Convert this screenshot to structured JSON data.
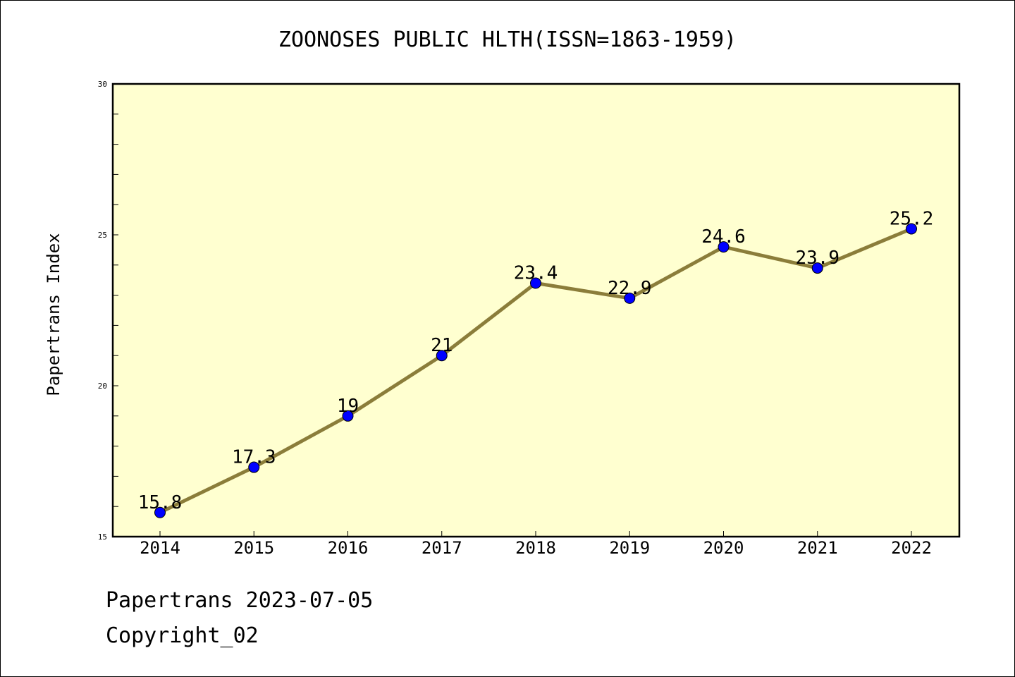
{
  "chart_data": {
    "type": "line",
    "title": "ZOONOSES PUBLIC HLTH(ISSN=1863-1959)",
    "ylabel": "Papertrans Index",
    "xlabel": "",
    "categories": [
      "2014",
      "2015",
      "2016",
      "2017",
      "2018",
      "2019",
      "2020",
      "2021",
      "2022"
    ],
    "series": [
      {
        "values": [
          15.8,
          17.3,
          19,
          21,
          23.4,
          22.9,
          24.6,
          23.9,
          25.2
        ],
        "labels": [
          "15.8",
          "17.3",
          "19",
          "21",
          "23.4",
          "22.9",
          "24.6",
          "23.9",
          "25.2"
        ]
      }
    ],
    "ylim": [
      15,
      30
    ],
    "yticks": [
      15,
      20,
      25,
      30
    ],
    "ytick_labels": [
      "15",
      "20",
      "25",
      "30"
    ],
    "grid": false,
    "colors": {
      "plot_background": "#ffffd0",
      "line": "#8b7d3a",
      "marker": "#0000ff"
    }
  },
  "footer": {
    "line1": "Papertrans 2023-07-05",
    "line2": "Copyright_02"
  }
}
